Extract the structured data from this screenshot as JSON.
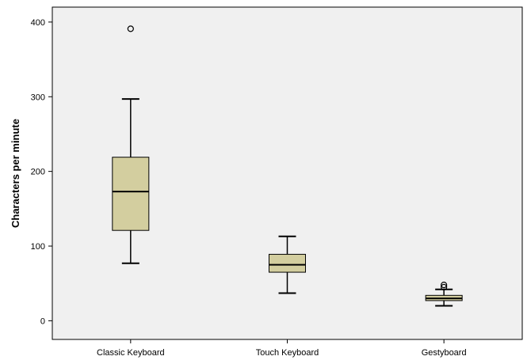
{
  "chart_data": {
    "type": "boxplot",
    "title": "",
    "xlabel": "",
    "ylabel": "Characters per minute",
    "ylim": [
      -25,
      420
    ],
    "yticks": [
      0,
      100,
      200,
      300,
      400
    ],
    "grid": false,
    "categories": [
      "Classic Keyboard",
      "Touch Keyboard",
      "Gestyboard"
    ],
    "boxes": [
      {
        "category": "Classic Keyboard",
        "whisker_low": 77,
        "q1": 121,
        "median": 173,
        "q3": 219,
        "whisker_high": 297,
        "outliers": [
          391
        ]
      },
      {
        "category": "Touch Keyboard",
        "whisker_low": 37,
        "q1": 65,
        "median": 75,
        "q3": 89,
        "whisker_high": 113,
        "outliers": []
      },
      {
        "category": "Gestyboard",
        "whisker_low": 20,
        "q1": 27,
        "median": 30,
        "q3": 34,
        "whisker_high": 42,
        "outliers": [
          45,
          48
        ]
      }
    ],
    "colors": {
      "plot_background": "#f0f0f0",
      "box_fill": "#d3ce9f",
      "stroke": "#000000"
    }
  }
}
